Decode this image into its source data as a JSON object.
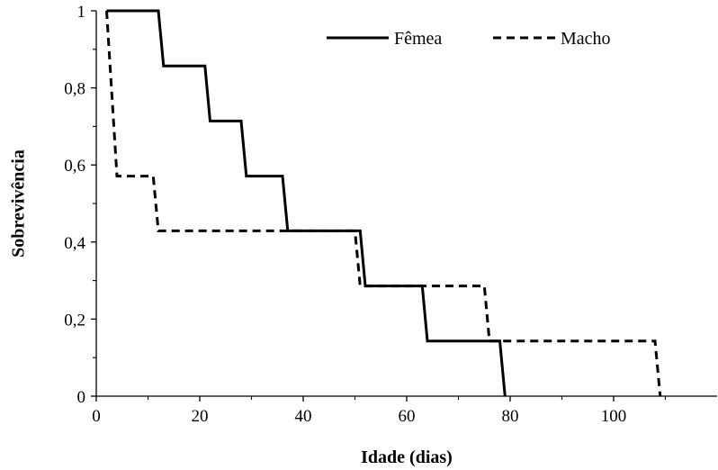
{
  "chart_data": {
    "type": "line",
    "step": true,
    "title": "",
    "xlabel": "Idade (dias)",
    "ylabel": "Sobrevivência",
    "xlim": [
      0,
      120
    ],
    "ylim": [
      0,
      1
    ],
    "x_ticks": [
      0,
      20,
      40,
      60,
      80,
      100
    ],
    "x_tick_labels": [
      "0",
      "20",
      "40",
      "60",
      "80",
      "100"
    ],
    "y_ticks": [
      0,
      0.2,
      0.4,
      0.6,
      0.8,
      1
    ],
    "y_tick_labels": [
      "0",
      "0,2",
      "0,4",
      "0,6",
      "0,8",
      "1"
    ],
    "grid": false,
    "legend_position": "top-right",
    "series": [
      {
        "name": "Fêmea",
        "style": "solid",
        "color": "#000000",
        "points": [
          [
            2,
            1
          ],
          [
            12,
            1
          ],
          [
            13,
            0.857
          ],
          [
            21,
            0.857
          ],
          [
            22,
            0.714
          ],
          [
            28,
            0.714
          ],
          [
            29,
            0.571
          ],
          [
            36,
            0.571
          ],
          [
            37,
            0.429
          ],
          [
            51,
            0.429
          ],
          [
            52,
            0.286
          ],
          [
            63,
            0.286
          ],
          [
            64,
            0.143
          ],
          [
            78,
            0.143
          ],
          [
            79,
            0
          ]
        ]
      },
      {
        "name": "Macho",
        "style": "dashed",
        "color": "#000000",
        "points": [
          [
            2,
            1
          ],
          [
            4,
            0.571
          ],
          [
            11,
            0.571
          ],
          [
            12,
            0.429
          ],
          [
            50,
            0.429
          ],
          [
            51,
            0.286
          ],
          [
            75,
            0.286
          ],
          [
            76,
            0.143
          ],
          [
            108,
            0.143
          ],
          [
            109,
            0
          ]
        ]
      }
    ]
  }
}
